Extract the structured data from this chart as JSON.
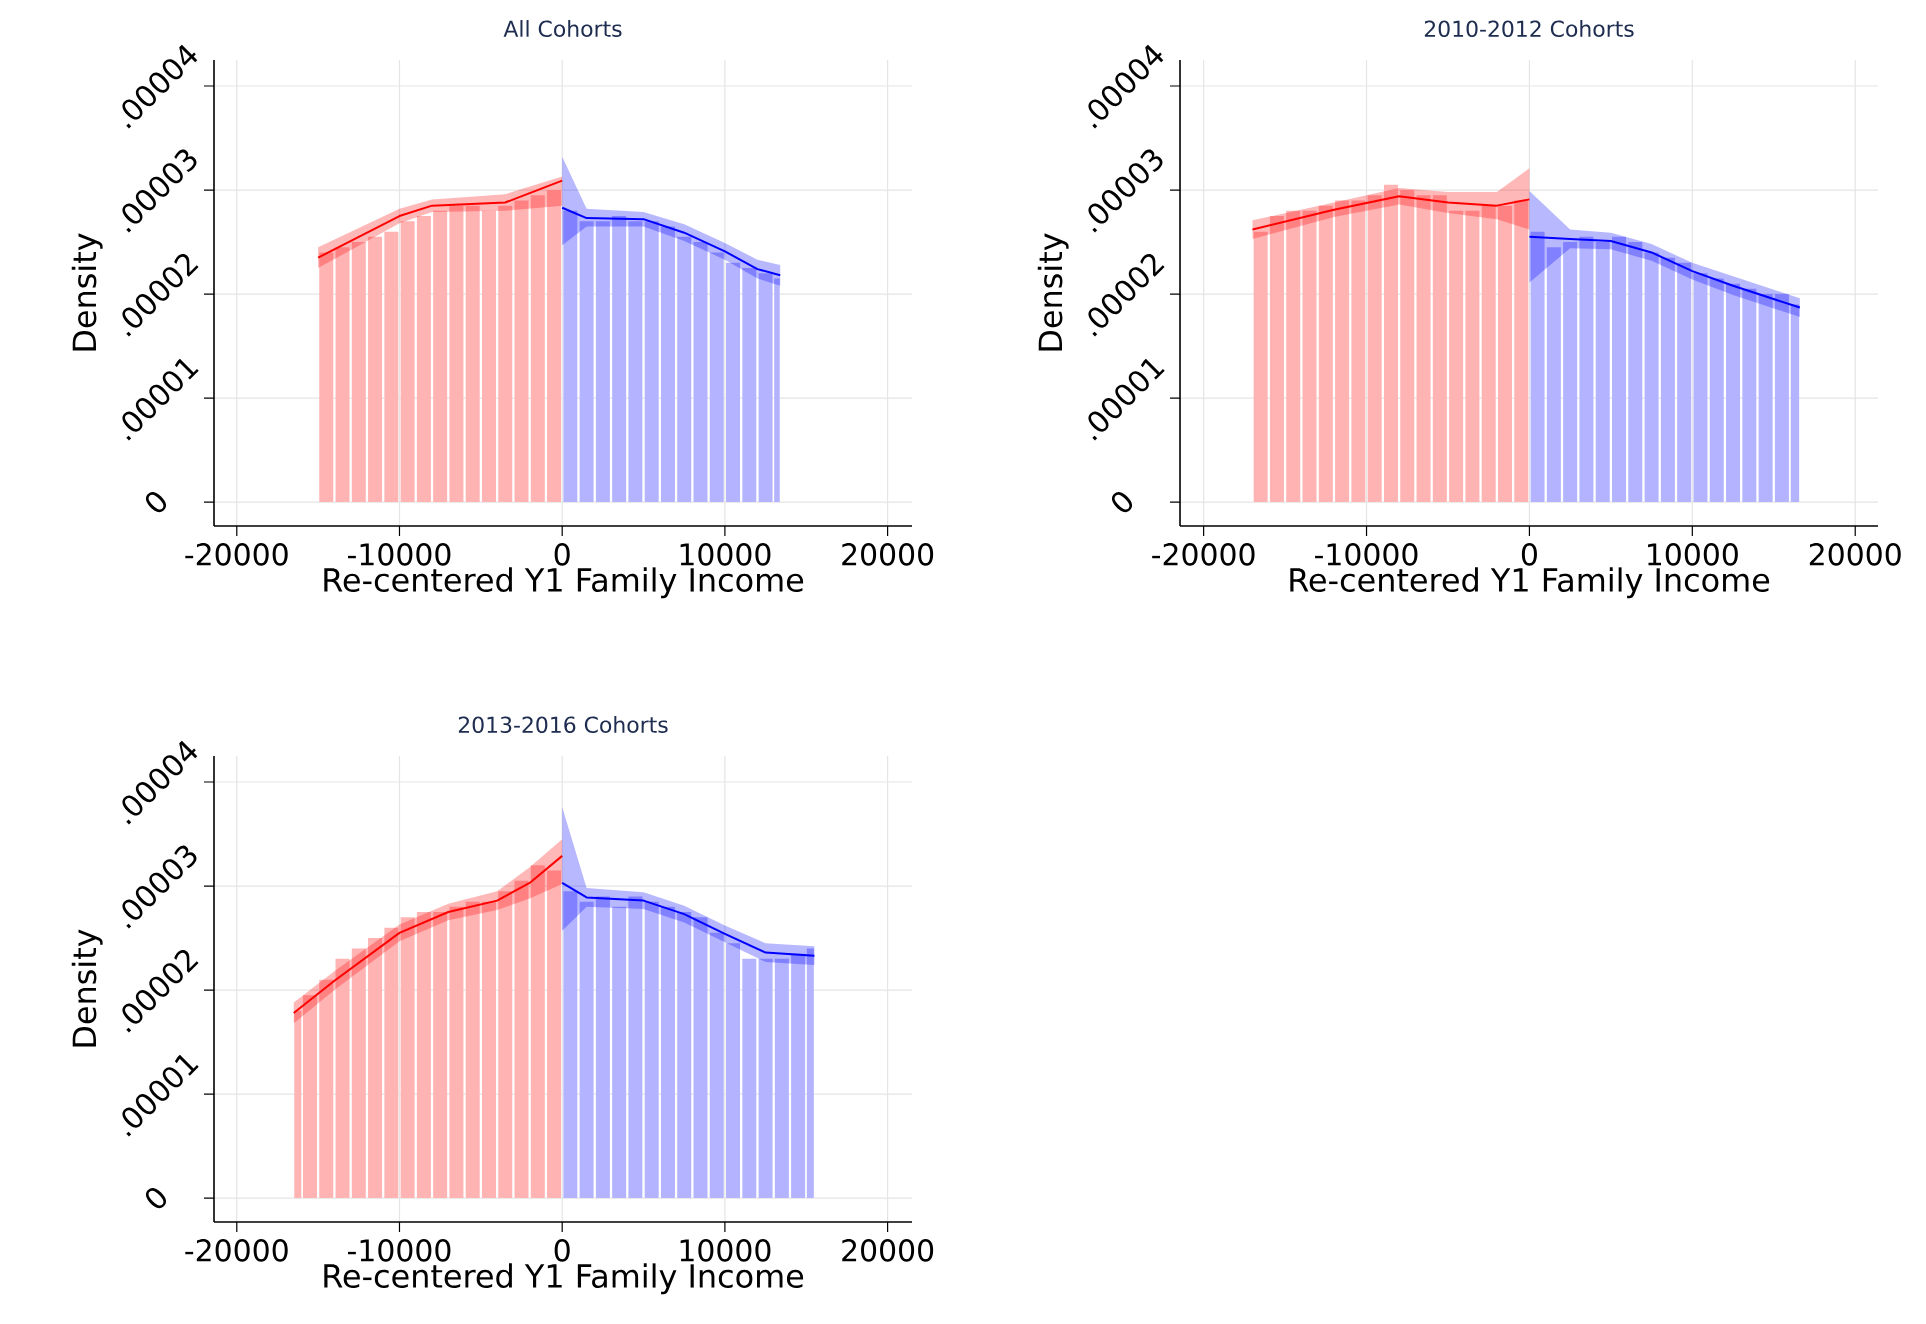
{
  "chart_data": [
    {
      "type": "histogram",
      "title": "All Cohorts",
      "xlabel": "Re-centered Y1 Family Income",
      "ylabel": "Density",
      "grid": true,
      "xlim": [
        -21400,
        21500
      ],
      "ylim": [
        -2.3e-06,
        4.25e-05
      ],
      "xticks": [
        -20000,
        -10000,
        0,
        10000,
        20000
      ],
      "yticks": [
        0,
        {
          "value": 1e-05,
          "label": ".00001"
        },
        {
          "value": 2e-05,
          "label": ".00002"
        },
        {
          "value": 3e-05,
          "label": ".00003"
        },
        {
          "value": 4e-05,
          "label": ".00004"
        }
      ],
      "series": [
        {
          "type": "histogram",
          "color": "#ffb3b3",
          "bins": [
            -15000,
            -14000,
            -13000,
            -12000,
            -11000,
            -10000,
            -9000,
            -8000,
            -7000,
            -6000,
            -5000,
            -4000,
            -3000,
            -2000,
            -1000,
            0
          ],
          "values": [
            2.4e-05,
            2.45e-05,
            2.5e-05,
            2.55e-05,
            2.6e-05,
            2.7e-05,
            2.75e-05,
            2.8e-05,
            2.85e-05,
            2.85e-05,
            2.8e-05,
            2.85e-05,
            2.9e-05,
            2.95e-05,
            3e-05
          ]
        },
        {
          "type": "histogram",
          "color": "#b3b3ff",
          "bins": [
            0,
            1000,
            2000,
            3000,
            4000,
            5000,
            6000,
            7000,
            8000,
            9000,
            10000,
            11000,
            12000,
            13000,
            13400
          ],
          "values": [
            2.8e-05,
            2.7e-05,
            2.7e-05,
            2.75e-05,
            2.7e-05,
            2.7e-05,
            2.65e-05,
            2.55e-05,
            2.5e-05,
            2.4e-05,
            2.3e-05,
            2.25e-05,
            2.2e-05,
            2.15e-05
          ]
        },
        {
          "type": "line",
          "color": "#ff0000",
          "x": [
            -15000,
            -10000,
            -8000,
            -3500,
            0
          ],
          "values": [
            2.35e-05,
            2.75e-05,
            2.85e-05,
            2.88e-05,
            3.09e-05
          ],
          "lower": [
            2.25e-05,
            2.68e-05,
            2.79e-05,
            2.8e-05,
            2.85e-05
          ],
          "upper": [
            2.45e-05,
            2.82e-05,
            2.91e-05,
            2.96e-05,
            3.13e-05
          ]
        },
        {
          "type": "line",
          "color": "#0000ff",
          "x": [
            0,
            1500,
            5000,
            7500,
            10000,
            12000,
            13400
          ],
          "values": [
            2.83e-05,
            2.73e-05,
            2.72e-05,
            2.59e-05,
            2.41e-05,
            2.24e-05,
            2.18e-05
          ],
          "lower": [
            2.47e-05,
            2.65e-05,
            2.65e-05,
            2.51e-05,
            2.33e-05,
            2.15e-05,
            2.08e-05
          ],
          "upper": [
            3.32e-05,
            2.82e-05,
            2.79e-05,
            2.67e-05,
            2.49e-05,
            2.33e-05,
            2.28e-05
          ]
        }
      ]
    },
    {
      "type": "histogram",
      "title": "2010-2012 Cohorts",
      "xlabel": "Re-centered Y1 Family Income",
      "ylabel": "Density",
      "grid": true,
      "xlim": [
        -21450,
        21400
      ],
      "ylim": [
        -2.3e-06,
        4.25e-05
      ],
      "xticks": [
        -20000,
        -10000,
        0,
        10000,
        20000
      ],
      "yticks": [
        0,
        {
          "value": 1e-05,
          "label": ".00001"
        },
        {
          "value": 2e-05,
          "label": ".00002"
        },
        {
          "value": 3e-05,
          "label": ".00003"
        },
        {
          "value": 4e-05,
          "label": ".00004"
        }
      ],
      "series": [
        {
          "type": "histogram",
          "color": "#ffb3b3",
          "bins": [
            -17000,
            -16000,
            -15000,
            -14000,
            -13000,
            -12000,
            -11000,
            -10000,
            -9000,
            -8000,
            -7000,
            -6000,
            -5000,
            -4000,
            -3000,
            -2000,
            -1000,
            0
          ],
          "values": [
            2.6e-05,
            2.75e-05,
            2.8e-05,
            2.8e-05,
            2.85e-05,
            2.9e-05,
            2.9e-05,
            2.95e-05,
            3.05e-05,
            3e-05,
            2.95e-05,
            2.95e-05,
            2.8e-05,
            2.8e-05,
            2.85e-05,
            2.85e-05,
            2.9e-05
          ]
        },
        {
          "type": "histogram",
          "color": "#b3b3ff",
          "bins": [
            0,
            1000,
            2000,
            3000,
            4000,
            5000,
            6000,
            7000,
            8000,
            9000,
            10000,
            11000,
            12000,
            13000,
            14000,
            15000,
            16000,
            16600
          ],
          "values": [
            2.6e-05,
            2.45e-05,
            2.5e-05,
            2.55e-05,
            2.5e-05,
            2.55e-05,
            2.5e-05,
            2.4e-05,
            2.35e-05,
            2.3e-05,
            2.2e-05,
            2.15e-05,
            2.1e-05,
            2.05e-05,
            2e-05,
            2e-05,
            1.9e-05
          ]
        },
        {
          "type": "line",
          "color": "#ff0000",
          "x": [
            -17000,
            -12000,
            -8000,
            -5000,
            -2000,
            0
          ],
          "values": [
            2.62e-05,
            2.81e-05,
            2.94e-05,
            2.88e-05,
            2.85e-05,
            2.91e-05
          ],
          "lower": [
            2.53e-05,
            2.74e-05,
            2.86e-05,
            2.78e-05,
            2.72e-05,
            2.62e-05
          ],
          "upper": [
            2.71e-05,
            2.88e-05,
            3.02e-05,
            2.98e-05,
            2.98e-05,
            3.21e-05
          ]
        },
        {
          "type": "line",
          "color": "#0000ff",
          "x": [
            0,
            2500,
            5000,
            7500,
            10000,
            12500,
            16600
          ],
          "values": [
            2.55e-05,
            2.53e-05,
            2.51e-05,
            2.4e-05,
            2.22e-05,
            2.08e-05,
            1.87e-05
          ],
          "lower": [
            2.11e-05,
            2.44e-05,
            2.43e-05,
            2.32e-05,
            2.14e-05,
            1.99e-05,
            1.78e-05
          ],
          "upper": [
            2.99e-05,
            2.62e-05,
            2.59e-05,
            2.48e-05,
            2.3e-05,
            2.17e-05,
            1.96e-05
          ]
        }
      ]
    },
    {
      "type": "histogram",
      "title": "2013-2016 Cohorts",
      "xlabel": "Re-centered Y1 Family Income",
      "ylabel": "Density",
      "grid": true,
      "xlim": [
        -21400,
        21500
      ],
      "ylim": [
        -2.3e-06,
        4.25e-05
      ],
      "xticks": [
        -20000,
        -10000,
        0,
        10000,
        20000
      ],
      "yticks": [
        0,
        {
          "value": 1e-05,
          "label": ".00001"
        },
        {
          "value": 2e-05,
          "label": ".00002"
        },
        {
          "value": 3e-05,
          "label": ".00003"
        },
        {
          "value": 4e-05,
          "label": ".00004"
        }
      ],
      "series": [
        {
          "type": "histogram",
          "color": "#ffb3b3",
          "bins": [
            -16500,
            -16000,
            -15000,
            -14000,
            -13000,
            -12000,
            -11000,
            -10000,
            -9000,
            -8000,
            -7000,
            -6000,
            -5000,
            -4000,
            -3000,
            -2000,
            -1000,
            0
          ],
          "values": [
            1.8e-05,
            1.95e-05,
            2.1e-05,
            2.3e-05,
            2.4e-05,
            2.5e-05,
            2.6e-05,
            2.7e-05,
            2.75e-05,
            2.75e-05,
            2.8e-05,
            2.85e-05,
            2.85e-05,
            2.95e-05,
            3.05e-05,
            3.2e-05,
            3.15e-05
          ]
        },
        {
          "type": "histogram",
          "color": "#b3b3ff",
          "bins": [
            0,
            1000,
            2000,
            3000,
            4000,
            5000,
            6000,
            7000,
            8000,
            9000,
            10000,
            11000,
            12000,
            13000,
            14000,
            15000,
            15500
          ],
          "values": [
            2.95e-05,
            2.85e-05,
            2.9e-05,
            2.8e-05,
            2.9e-05,
            2.85e-05,
            2.8e-05,
            2.75e-05,
            2.7e-05,
            2.55e-05,
            2.45e-05,
            2.3e-05,
            2.3e-05,
            2.3e-05,
            2.35e-05,
            2.4e-05
          ]
        },
        {
          "type": "line",
          "color": "#ff0000",
          "x": [
            -16500,
            -14000,
            -10000,
            -7000,
            -4000,
            -2000,
            0
          ],
          "values": [
            1.78e-05,
            2.09e-05,
            2.55e-05,
            2.75e-05,
            2.86e-05,
            3.03e-05,
            3.29e-05
          ],
          "lower": [
            1.68e-05,
            2e-05,
            2.47e-05,
            2.67e-05,
            2.77e-05,
            2.88e-05,
            3.02e-05
          ],
          "upper": [
            1.88e-05,
            2.18e-05,
            2.63e-05,
            2.83e-05,
            2.95e-05,
            3.18e-05,
            3.45e-05
          ]
        },
        {
          "type": "line",
          "color": "#0000ff",
          "x": [
            0,
            1500,
            5000,
            7500,
            10000,
            12500,
            15500
          ],
          "values": [
            3.03e-05,
            2.89e-05,
            2.86e-05,
            2.73e-05,
            2.54e-05,
            2.36e-05,
            2.33e-05
          ],
          "lower": [
            2.57e-05,
            2.8e-05,
            2.78e-05,
            2.65e-05,
            2.46e-05,
            2.27e-05,
            2.24e-05
          ],
          "upper": [
            3.76e-05,
            2.98e-05,
            2.94e-05,
            2.81e-05,
            2.62e-05,
            2.45e-05,
            2.42e-05
          ]
        }
      ]
    }
  ]
}
